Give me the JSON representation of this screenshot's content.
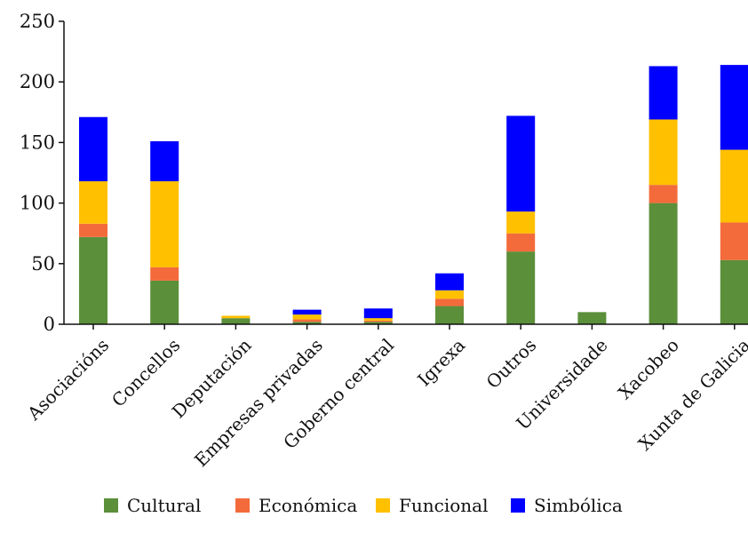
{
  "chart_data": {
    "type": "bar",
    "stacked": true,
    "title": "",
    "xlabel": "",
    "ylabel": "",
    "ylim": [
      0,
      250
    ],
    "yticks": [
      0,
      50,
      100,
      150,
      200,
      250
    ],
    "grid": false,
    "legend_position": "bottom",
    "categories": [
      "Asociacións",
      "Concellos",
      "Deputación",
      "Empresas privadas",
      "Goberno central",
      "Igrexa",
      "Outros",
      "Universidade",
      "Xacobeo",
      "Xunta de Galicia"
    ],
    "series": [
      {
        "name": "Cultural",
        "color": "#5b8f3a",
        "values": [
          72,
          36,
          5,
          2,
          2,
          15,
          60,
          10,
          100,
          53
        ]
      },
      {
        "name": "Económica",
        "color": "#f36b3b",
        "values": [
          11,
          11,
          0,
          2,
          1,
          6,
          15,
          0,
          15,
          31
        ]
      },
      {
        "name": "Funcional",
        "color": "#ffc000",
        "values": [
          35,
          71,
          2,
          4,
          2,
          7,
          18,
          0,
          54,
          60
        ]
      },
      {
        "name": "Simbólica",
        "color": "#0000ff",
        "values": [
          53,
          33,
          0,
          4,
          8,
          14,
          79,
          0,
          44,
          70
        ]
      }
    ]
  }
}
